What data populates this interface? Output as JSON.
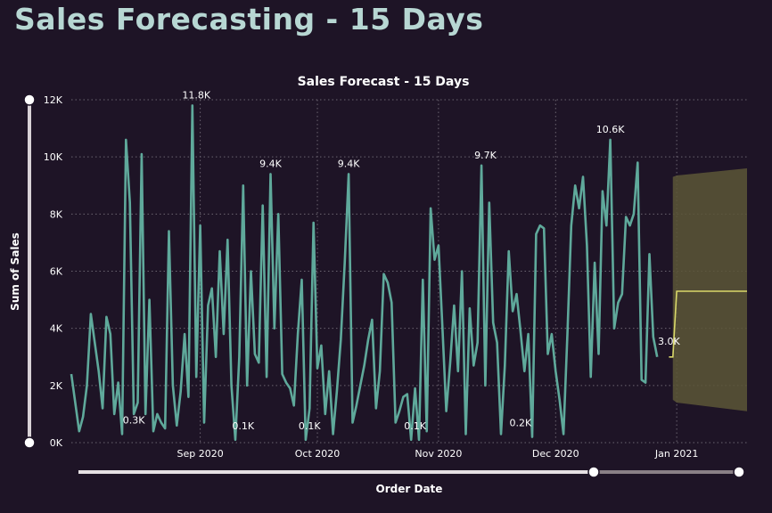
{
  "page_title": "Sales Forecasting - 15 Days",
  "colors": {
    "background": "#1e1426",
    "title": "#b7d7d3",
    "line": "#5fa99b",
    "forecast": "#d9d86a",
    "forecast_band": "#5c5637",
    "slider": "#e6e0e3"
  },
  "chart_data": {
    "type": "line",
    "title": "Sales Forecast - 15 Days",
    "xlabel": "Order Date",
    "ylabel": "Sum of Sales",
    "ylim": [
      0,
      12000
    ],
    "yticks": [
      "0K",
      "2K",
      "4K",
      "6K",
      "8K",
      "10K",
      "12K"
    ],
    "xticks": [
      {
        "date": "2020-09-01",
        "label": "Sep 2020"
      },
      {
        "date": "2020-10-01",
        "label": "Oct 2020"
      },
      {
        "date": "2020-11-01",
        "label": "Nov 2020"
      },
      {
        "date": "2020-12-01",
        "label": "Dec 2020"
      },
      {
        "date": "2021-01-01",
        "label": "Jan 2021"
      }
    ],
    "x_range": [
      "2020-07-30",
      "2021-01-19"
    ],
    "grid": true,
    "series": [
      {
        "start_date": "2020-07-30",
        "values": [
          2400,
          1400,
          400,
          900,
          2000,
          4500,
          3500,
          2500,
          1200,
          4400,
          3800,
          1000,
          2100,
          300,
          10600,
          8400,
          1000,
          1400,
          10100,
          1000,
          5000,
          400,
          1000,
          700,
          500,
          7400,
          2000,
          600,
          1800,
          3800,
          1600,
          11800,
          2300,
          7600,
          700,
          4800,
          5400,
          3000,
          6700,
          3800,
          7100,
          2000,
          100,
          3000,
          9000,
          2000,
          6000,
          3100,
          2800,
          8300,
          2300,
          9400,
          4000,
          8000,
          2400,
          2100,
          1900,
          1300,
          3800,
          5700,
          100,
          1200,
          7700,
          2600,
          3400,
          1000,
          2500,
          300,
          1800,
          3600,
          6300,
          9400,
          700,
          1300,
          2000,
          2700,
          3600,
          4300,
          1200,
          2500,
          5900,
          5600,
          4900,
          700,
          1100,
          1600,
          1700,
          100,
          1900,
          100,
          5700,
          400,
          8200,
          6400,
          6900,
          4100,
          1100,
          2800,
          4800,
          2500,
          6000,
          300,
          4700,
          2700,
          3500,
          9700,
          2000,
          8400,
          4200,
          3500,
          300,
          2700,
          6700,
          4600,
          5200,
          3900,
          2500,
          3800,
          200,
          7300,
          7600,
          7500,
          3100,
          3800,
          2500,
          1500,
          300,
          3800,
          7600,
          9000,
          8200,
          9300,
          6900,
          2300,
          6300,
          3100,
          8800,
          7600,
          10600,
          4000,
          4900,
          5200,
          7900,
          7600,
          8000,
          9800,
          2200,
          2100,
          6600,
          3700,
          3000
        ],
        "min_max_labels": [
          {
            "date": "2020-08-15",
            "value": 300,
            "label": "0.3K"
          },
          {
            "date": "2020-08-31",
            "value": 11800,
            "label": "11.8K"
          },
          {
            "date": "2020-09-12",
            "value": 100,
            "label": "0.1K"
          },
          {
            "date": "2020-09-19",
            "value": 9400,
            "label": "9.4K"
          },
          {
            "date": "2020-09-29",
            "value": 100,
            "label": "0.1K"
          },
          {
            "date": "2020-10-09",
            "value": 9400,
            "label": "9.4K"
          },
          {
            "date": "2020-10-26",
            "value": 100,
            "label": "0.1K"
          },
          {
            "date": "2020-11-13",
            "value": 9700,
            "label": "9.7K"
          },
          {
            "date": "2020-11-22",
            "value": 200,
            "label": "0.2K"
          },
          {
            "date": "2020-12-15",
            "value": 10600,
            "label": "10.6K"
          },
          {
            "date": "2020-12-30",
            "value": 3000,
            "label": "3.0K"
          }
        ]
      }
    ],
    "forecast": {
      "start_date": "2020-12-30",
      "start_value": 3000,
      "dates": [
        "2020-12-31",
        "2021-01-01",
        "2021-01-19"
      ],
      "values": [
        3000,
        5300,
        5300
      ],
      "upper": [
        9300,
        9350,
        9600
      ],
      "lower": [
        1500,
        1400,
        1100
      ]
    }
  }
}
